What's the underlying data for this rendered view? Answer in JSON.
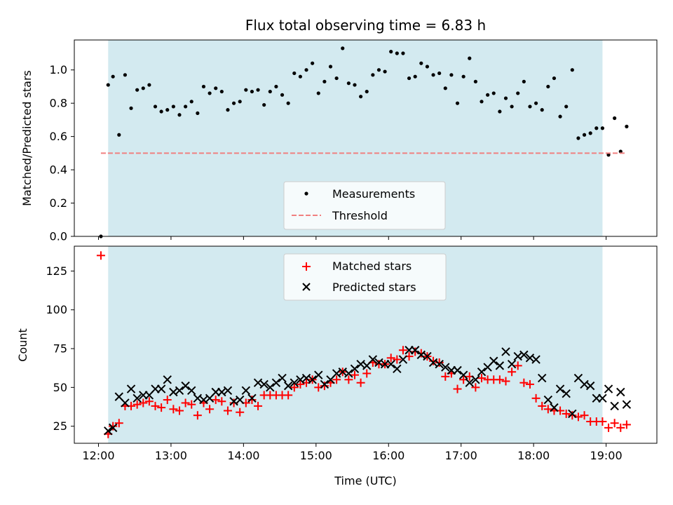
{
  "chart_data": [
    {
      "type": "scatter",
      "title": "Flux total observing time = 6.83 h",
      "xlabel": "",
      "ylabel": "Matched/Predicted stars",
      "xlim": [
        "11:40",
        "19:42"
      ],
      "ylim": [
        0,
        1.18
      ],
      "yticks": [
        0.0,
        0.2,
        0.4,
        0.6,
        0.8,
        1.0
      ],
      "ytick_labels": [
        "0.0",
        "0.2",
        "0.4",
        "0.6",
        "0.8",
        "1.0"
      ],
      "xticks": [
        "12:00",
        "13:00",
        "14:00",
        "15:00",
        "16:00",
        "17:00",
        "18:00",
        "19:00"
      ],
      "shaded_span": [
        "12:08",
        "18:57"
      ],
      "shaded_color": "#d3eaf0",
      "legend_position": "lower center",
      "series": [
        {
          "name": "Measurements",
          "marker": "dot",
          "color": "#000000",
          "x": [
            "12:02",
            "12:08",
            "12:12",
            "12:17",
            "12:22",
            "12:27",
            "12:32",
            "12:37",
            "12:42",
            "12:47",
            "12:52",
            "12:57",
            "13:02",
            "13:07",
            "13:12",
            "13:17",
            "13:22",
            "13:27",
            "13:32",
            "13:37",
            "13:42",
            "13:47",
            "13:52",
            "13:57",
            "14:02",
            "14:07",
            "14:12",
            "14:17",
            "14:22",
            "14:27",
            "14:32",
            "14:37",
            "14:42",
            "14:47",
            "14:52",
            "14:57",
            "15:02",
            "15:07",
            "15:12",
            "15:17",
            "15:22",
            "15:27",
            "15:32",
            "15:37",
            "15:42",
            "15:47",
            "15:52",
            "15:57",
            "16:02",
            "16:07",
            "16:12",
            "16:17",
            "16:22",
            "16:27",
            "16:32",
            "16:37",
            "16:42",
            "16:47",
            "16:52",
            "16:57",
            "17:02",
            "17:07",
            "17:12",
            "17:17",
            "17:22",
            "17:27",
            "17:32",
            "17:37",
            "17:42",
            "17:47",
            "17:52",
            "17:57",
            "18:02",
            "18:07",
            "18:12",
            "18:17",
            "18:22",
            "18:27",
            "18:32",
            "18:37",
            "18:42",
            "18:47",
            "18:52",
            "18:57",
            "19:02",
            "19:07",
            "19:12",
            "19:17"
          ],
          "y": [
            0.0,
            0.91,
            0.96,
            0.61,
            0.97,
            0.77,
            0.88,
            0.89,
            0.91,
            0.78,
            0.75,
            0.76,
            0.78,
            0.73,
            0.78,
            0.81,
            0.74,
            0.9,
            0.86,
            0.89,
            0.87,
            0.76,
            0.8,
            0.81,
            0.88,
            0.87,
            0.88,
            0.79,
            0.87,
            0.9,
            0.85,
            0.8,
            0.98,
            0.96,
            1.0,
            1.04,
            0.86,
            0.93,
            1.02,
            0.95,
            1.13,
            0.92,
            0.91,
            0.84,
            0.87,
            0.97,
            1.0,
            0.99,
            1.11,
            1.1,
            1.1,
            0.95,
            0.96,
            1.04,
            1.02,
            0.97,
            0.98,
            0.89,
            0.97,
            0.8,
            0.96,
            1.07,
            0.93,
            0.81,
            0.85,
            0.86,
            0.75,
            0.83,
            0.78,
            0.86,
            0.93,
            0.78,
            0.8,
            0.76,
            0.9,
            0.95,
            0.72,
            0.78,
            1.0,
            0.59,
            0.61,
            0.62,
            0.65,
            0.65,
            0.49,
            0.71,
            0.51,
            0.66
          ]
        },
        {
          "name": "Threshold",
          "marker": "dashed-line",
          "color": "#f08080",
          "x": [
            "12:02",
            "19:17"
          ],
          "y": [
            0.5,
            0.5
          ]
        }
      ]
    },
    {
      "type": "scatter",
      "title": "",
      "xlabel": "Time (UTC)",
      "ylabel": "Count",
      "xlim": [
        "11:40",
        "19:42"
      ],
      "ylim": [
        14,
        141
      ],
      "yticks": [
        25,
        50,
        75,
        100,
        125
      ],
      "ytick_labels": [
        "25",
        "50",
        "75",
        "100",
        "125"
      ],
      "xticks": [
        "12:00",
        "13:00",
        "14:00",
        "15:00",
        "16:00",
        "17:00",
        "18:00",
        "19:00"
      ],
      "xtick_labels": [
        "12:00",
        "13:00",
        "14:00",
        "15:00",
        "16:00",
        "17:00",
        "18:00",
        "19:00"
      ],
      "shaded_span": [
        "12:08",
        "18:57"
      ],
      "shaded_color": "#d3eaf0",
      "legend_position": "upper center",
      "series": [
        {
          "name": "Matched stars",
          "marker": "plus",
          "color": "#ff0000",
          "x": [
            "12:02",
            "12:08",
            "12:12",
            "12:17",
            "12:22",
            "12:27",
            "12:32",
            "12:37",
            "12:42",
            "12:47",
            "12:52",
            "12:57",
            "13:02",
            "13:07",
            "13:12",
            "13:17",
            "13:22",
            "13:27",
            "13:32",
            "13:37",
            "13:42",
            "13:47",
            "13:52",
            "13:57",
            "14:02",
            "14:07",
            "14:12",
            "14:17",
            "14:22",
            "14:27",
            "14:32",
            "14:37",
            "14:42",
            "14:47",
            "14:52",
            "14:57",
            "15:02",
            "15:07",
            "15:12",
            "15:17",
            "15:22",
            "15:27",
            "15:32",
            "15:37",
            "15:42",
            "15:47",
            "15:52",
            "15:57",
            "16:02",
            "16:07",
            "16:12",
            "16:17",
            "16:22",
            "16:27",
            "16:32",
            "16:37",
            "16:42",
            "16:47",
            "16:52",
            "16:57",
            "17:02",
            "17:07",
            "17:12",
            "17:17",
            "17:22",
            "17:27",
            "17:32",
            "17:37",
            "17:42",
            "17:47",
            "17:52",
            "17:57",
            "18:02",
            "18:07",
            "18:12",
            "18:17",
            "18:22",
            "18:27",
            "18:32",
            "18:37",
            "18:42",
            "18:47",
            "18:52",
            "18:57",
            "19:02",
            "19:07",
            "19:12",
            "19:17"
          ],
          "y": [
            135,
            20,
            25,
            27,
            38,
            38,
            39,
            40,
            41,
            38,
            37,
            42,
            36,
            35,
            40,
            39,
            32,
            40,
            36,
            42,
            41,
            35,
            40,
            34,
            40,
            42,
            38,
            45,
            45,
            45,
            45,
            45,
            50,
            52,
            53,
            55,
            50,
            51,
            53,
            55,
            60,
            55,
            58,
            53,
            59,
            66,
            65,
            65,
            69,
            68,
            74,
            70,
            73,
            72,
            70,
            67,
            66,
            57,
            59,
            49,
            55,
            57,
            50,
            56,
            55,
            55,
            55,
            54,
            60,
            64,
            53,
            52,
            43,
            38,
            36,
            35,
            35,
            33,
            32,
            31,
            32,
            28,
            28,
            28,
            24,
            27,
            24,
            26
          ]
        },
        {
          "name": "Predicted stars",
          "marker": "x",
          "color": "#000000",
          "x": [
            "12:08",
            "12:12",
            "12:17",
            "12:22",
            "12:27",
            "12:32",
            "12:37",
            "12:42",
            "12:47",
            "12:52",
            "12:57",
            "13:02",
            "13:07",
            "13:12",
            "13:17",
            "13:22",
            "13:27",
            "13:32",
            "13:37",
            "13:42",
            "13:47",
            "13:52",
            "13:57",
            "14:02",
            "14:07",
            "14:12",
            "14:17",
            "14:22",
            "14:27",
            "14:32",
            "14:37",
            "14:42",
            "14:47",
            "14:52",
            "14:57",
            "15:02",
            "15:07",
            "15:12",
            "15:17",
            "15:22",
            "15:27",
            "15:32",
            "15:37",
            "15:42",
            "15:47",
            "15:52",
            "15:57",
            "16:02",
            "16:07",
            "16:12",
            "16:17",
            "16:22",
            "16:27",
            "16:32",
            "16:37",
            "16:42",
            "16:47",
            "16:52",
            "16:57",
            "17:02",
            "17:07",
            "17:12",
            "17:17",
            "17:22",
            "17:27",
            "17:32",
            "17:37",
            "17:42",
            "17:47",
            "17:52",
            "17:57",
            "18:02",
            "18:07",
            "18:12",
            "18:17",
            "18:22",
            "18:27",
            "18:32",
            "18:37",
            "18:42",
            "18:47",
            "18:52",
            "18:57",
            "19:02",
            "19:07",
            "19:12",
            "19:17"
          ],
          "y": [
            22,
            24,
            44,
            40,
            49,
            43,
            45,
            45,
            49,
            49,
            55,
            47,
            48,
            51,
            48,
            43,
            42,
            43,
            47,
            47,
            48,
            41,
            42,
            48,
            43,
            53,
            52,
            50,
            53,
            56,
            51,
            53,
            55,
            56,
            55,
            58,
            52,
            55,
            59,
            60,
            59,
            62,
            65,
            64,
            68,
            66,
            65,
            65,
            62,
            68,
            74,
            74,
            71,
            70,
            66,
            65,
            63,
            61,
            61,
            58,
            53,
            55,
            60,
            63,
            67,
            64,
            73,
            65,
            70,
            71,
            69,
            68,
            56,
            42,
            37,
            49,
            46,
            33,
            56,
            52,
            51,
            43,
            43,
            49,
            38,
            47,
            39
          ]
        }
      ]
    }
  ]
}
